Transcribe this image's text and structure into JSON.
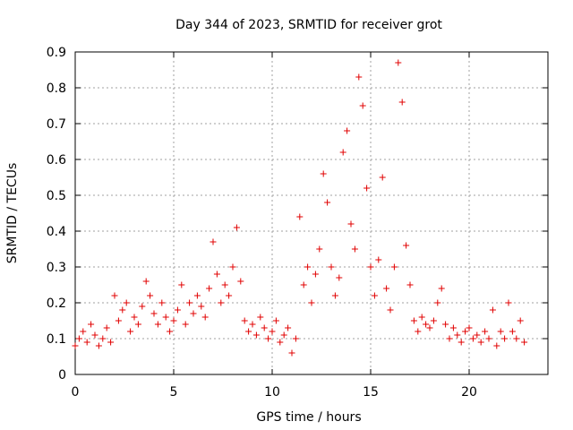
{
  "chart_data": {
    "type": "scatter",
    "title": "Day 344 of 2023, SRMTID for receiver grot",
    "xlabel": "GPS time / hours",
    "ylabel": "SRMTID / TECUs",
    "xlim": [
      0,
      24
    ],
    "ylim": [
      0,
      0.9
    ],
    "xticks": [
      0,
      5,
      10,
      15,
      20
    ],
    "xtick_labels": [
      "0",
      "5",
      "10",
      "15",
      "20"
    ],
    "yticks": [
      0,
      0.1,
      0.2,
      0.3,
      0.4,
      0.5,
      0.6,
      0.7,
      0.8,
      0.9
    ],
    "ytick_labels": [
      "0",
      "0.1",
      "0.2",
      "0.3",
      "0.4",
      "0.5",
      "0.6",
      "0.7",
      "0.8",
      "0.9"
    ],
    "grid": true,
    "marker": "+",
    "color": "#e00000",
    "series": [
      {
        "name": "SRMTID",
        "x": [
          0.0,
          0.2,
          0.4,
          0.6,
          0.8,
          1.0,
          1.2,
          1.4,
          1.6,
          1.8,
          2.0,
          2.2,
          2.4,
          2.6,
          2.8,
          3.0,
          3.2,
          3.4,
          3.6,
          3.8,
          4.0,
          4.2,
          4.4,
          4.6,
          4.8,
          5.0,
          5.2,
          5.4,
          5.6,
          5.8,
          6.0,
          6.2,
          6.4,
          6.6,
          6.8,
          7.0,
          7.2,
          7.4,
          7.6,
          7.8,
          8.0,
          8.2,
          8.4,
          8.6,
          8.8,
          9.0,
          9.2,
          9.4,
          9.6,
          9.8,
          10.0,
          10.2,
          10.4,
          10.6,
          10.8,
          11.0,
          11.2,
          11.4,
          11.6,
          11.8,
          12.0,
          12.2,
          12.4,
          12.6,
          12.8,
          13.0,
          13.2,
          13.4,
          13.6,
          13.8,
          14.0,
          14.2,
          14.4,
          14.6,
          14.8,
          15.0,
          15.2,
          15.4,
          15.6,
          15.8,
          16.0,
          16.2,
          16.4,
          16.6,
          16.8,
          17.0,
          17.2,
          17.4,
          17.6,
          17.8,
          18.0,
          18.2,
          18.4,
          18.6,
          18.8,
          19.0,
          19.2,
          19.4,
          19.6,
          19.8,
          20.0,
          20.2,
          20.4,
          20.6,
          20.8,
          21.0,
          21.2,
          21.4,
          21.6,
          21.8,
          22.0,
          22.2,
          22.4,
          22.6,
          22.8
        ],
        "y": [
          0.08,
          0.1,
          0.12,
          0.09,
          0.14,
          0.11,
          0.08,
          0.1,
          0.13,
          0.09,
          0.22,
          0.15,
          0.18,
          0.2,
          0.12,
          0.16,
          0.14,
          0.19,
          0.26,
          0.22,
          0.17,
          0.14,
          0.2,
          0.16,
          0.12,
          0.15,
          0.18,
          0.25,
          0.14,
          0.2,
          0.17,
          0.22,
          0.19,
          0.16,
          0.24,
          0.37,
          0.28,
          0.2,
          0.25,
          0.22,
          0.3,
          0.41,
          0.26,
          0.15,
          0.12,
          0.14,
          0.11,
          0.16,
          0.13,
          0.1,
          0.12,
          0.15,
          0.09,
          0.11,
          0.13,
          0.06,
          0.1,
          0.44,
          0.25,
          0.3,
          0.2,
          0.28,
          0.35,
          0.56,
          0.48,
          0.3,
          0.22,
          0.27,
          0.62,
          0.68,
          0.42,
          0.35,
          0.83,
          0.75,
          0.52,
          0.3,
          0.22,
          0.32,
          0.55,
          0.24,
          0.18,
          0.3,
          0.87,
          0.76,
          0.36,
          0.25,
          0.15,
          0.12,
          0.16,
          0.14,
          0.13,
          0.15,
          0.2,
          0.24,
          0.14,
          0.1,
          0.13,
          0.11,
          0.09,
          0.12,
          0.13,
          0.1,
          0.11,
          0.09,
          0.12,
          0.1,
          0.18,
          0.08,
          0.12,
          0.1,
          0.2,
          0.12,
          0.1,
          0.15,
          0.09
        ]
      }
    ]
  }
}
